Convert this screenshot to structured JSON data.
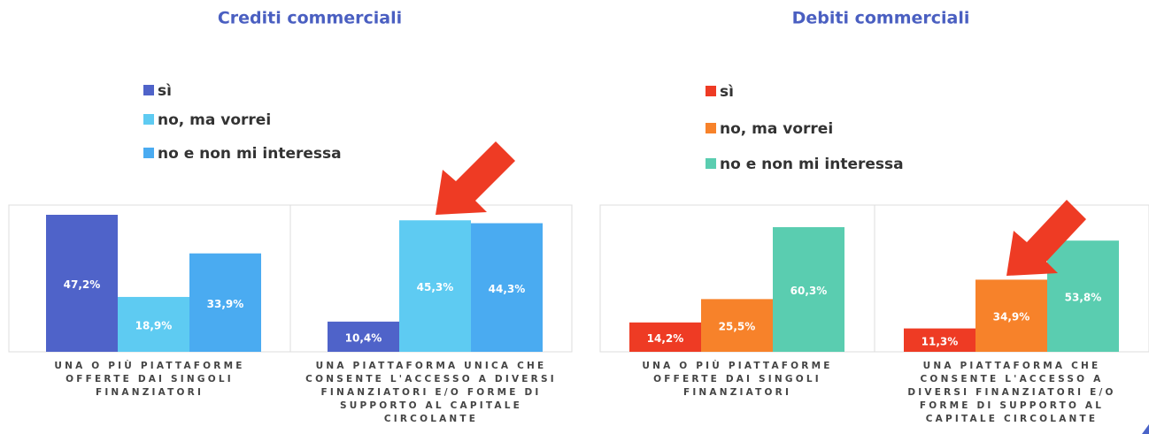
{
  "chart_data": [
    {
      "type": "bar",
      "title": "Crediti commerciali",
      "categories": [
        "UNA O PIÙ PIATTAFORME OFFERTE DAI SINGOLI FINANZIATORI",
        "UNA PIATTAFORMA UNICA CHE CONSENTE L'ACCESSO A DIVERSI FINANZIATORI E/O FORME DI SUPPORTO AL CAPITALE CIRCOLANTE"
      ],
      "series": [
        {
          "name": "sì",
          "color": "#4f63c9",
          "values": [
            47.2,
            10.4
          ],
          "value_labels": [
            "47,2%",
            "10,4%"
          ]
        },
        {
          "name": "no, ma vorrei",
          "color": "#5ecbf2",
          "values": [
            18.9,
            45.3
          ],
          "value_labels": [
            "18,9%",
            "45,3%"
          ]
        },
        {
          "name": "no e non mi interessa",
          "color": "#4aabf1",
          "values": [
            33.9,
            44.3
          ],
          "value_labels": [
            "33,9%",
            "44,3%"
          ]
        }
      ]
    },
    {
      "type": "bar",
      "title": "Debiti commerciali",
      "categories": [
        "UNA O PIÙ PIATTAFORME OFFERTE DAI SINGOLI FINANZIATORI",
        "UNA PIATTAFORMA CHE CONSENTE L'ACCESSO A DIVERSI FINANZIATORI E/O FORME DI SUPPORTO AL CAPITALE CIRCOLANTE"
      ],
      "series": [
        {
          "name": "sì",
          "color": "#ee3b24",
          "values": [
            14.2,
            11.3
          ],
          "value_labels": [
            "14,2%",
            "11,3%"
          ]
        },
        {
          "name": "no, ma vorrei",
          "color": "#f7822a",
          "values": [
            25.5,
            34.9
          ],
          "value_labels": [
            "25,5%",
            "34,9%"
          ]
        },
        {
          "name": "no e non mi interessa",
          "color": "#5acdb0",
          "values": [
            60.3,
            53.8
          ],
          "value_labels": [
            "60,3%",
            "53,8%"
          ]
        }
      ]
    }
  ]
}
